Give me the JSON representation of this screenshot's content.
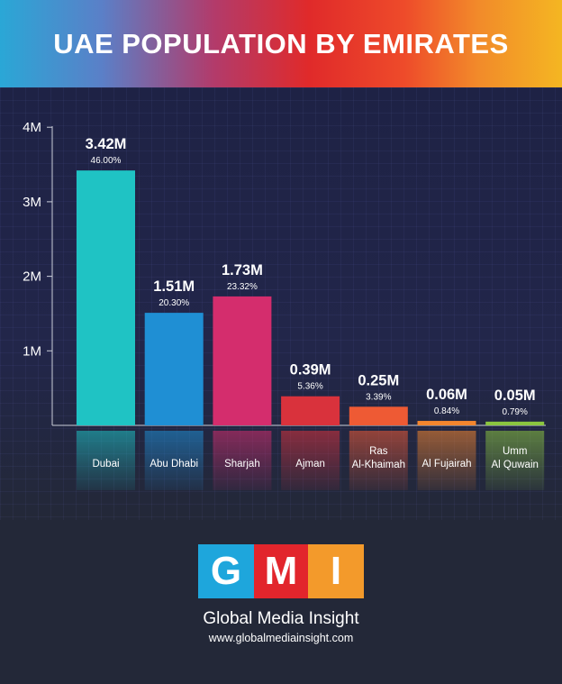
{
  "header": {
    "title": "UAE POPULATION BY EMIRATES"
  },
  "chart_data": {
    "type": "bar",
    "title": "UAE POPULATION BY EMIRATES",
    "categories": [
      "Dubai",
      "Abu Dhabi",
      "Sharjah",
      "Ajman",
      "Ras Al-Khaimah",
      "Al Fujairah",
      "Umm Al Quwain"
    ],
    "category_lines": [
      [
        "Dubai"
      ],
      [
        "Abu Dhabi"
      ],
      [
        "Sharjah"
      ],
      [
        "Ajman"
      ],
      [
        "Ras",
        "Al-Khaimah"
      ],
      [
        "Al Fujairah"
      ],
      [
        "Umm",
        "Al Quwain"
      ]
    ],
    "values": [
      3.42,
      1.51,
      1.73,
      0.39,
      0.25,
      0.06,
      0.05
    ],
    "value_labels": [
      "3.42M",
      "1.51M",
      "1.73M",
      "0.39M",
      "0.25M",
      "0.06M",
      "0.05M"
    ],
    "percent_labels": [
      "46.00%",
      "20.30%",
      "23.32%",
      "5.36%",
      "3.39%",
      "0.84%",
      "0.79%"
    ],
    "colors": [
      "#1fc3c4",
      "#1f8fd4",
      "#d42d6d",
      "#d9323c",
      "#ee5a34",
      "#f4862e",
      "#8bc53f"
    ],
    "yticks": [
      1,
      2,
      3,
      4
    ],
    "ytick_labels": [
      "1M",
      "2M",
      "3M",
      "4M"
    ],
    "ylim": [
      0,
      4.35
    ],
    "xlabel": "",
    "ylabel": "",
    "grid": true
  },
  "brand": {
    "logo_letters": [
      "G",
      "M",
      "I"
    ],
    "logo_colors": [
      "#1ea6dc",
      "#e2252c",
      "#f39a2b"
    ],
    "name": "Global Media Insight",
    "url": "www.globalmediainsight.com"
  }
}
